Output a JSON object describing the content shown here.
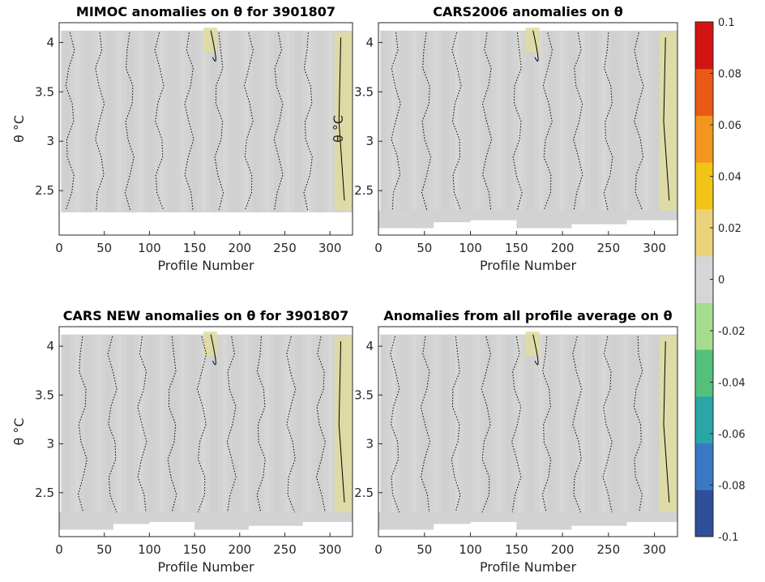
{
  "figure": {
    "colorbar": {
      "ticks": [
        "0.1",
        "0.08",
        "0.06",
        "0.04",
        "0.02",
        "0",
        "-0.02",
        "-0.04",
        "-0.06",
        "-0.08",
        "-0.1"
      ],
      "colors": [
        "#2f4f9a",
        "#3a78c4",
        "#2aa6a6",
        "#54c07c",
        "#a6dc8e",
        "#d6d6d6",
        "#ead37a",
        "#f2c418",
        "#f2961e",
        "#ea5a14",
        "#d21412"
      ]
    }
  },
  "chart_data": [
    {
      "type": "heatmap",
      "title": "MIMOC anomalies on θ  for 3901807",
      "xlabel": "Profile Number",
      "ylabel": "θ °C",
      "xlim": [
        0,
        325
      ],
      "ylim": [
        2.05,
        4.2
      ],
      "xticks": [
        "0",
        "50",
        "100",
        "150",
        "200",
        "250",
        "300"
      ],
      "yticks": [
        "2.5",
        "3",
        "3.5",
        "4"
      ],
      "clim": [
        -0.1,
        0.1
      ]
    },
    {
      "type": "heatmap",
      "title": "CARS2006 anomalies on θ",
      "xlabel": "Profile Number",
      "ylabel": "θ °C",
      "xlim": [
        0,
        325
      ],
      "ylim": [
        2.05,
        4.2
      ],
      "xticks": [
        "0",
        "50",
        "100",
        "150",
        "200",
        "250",
        "300"
      ],
      "yticks": [
        "2.5",
        "3",
        "3.5",
        "4"
      ],
      "clim": [
        -0.1,
        0.1
      ]
    },
    {
      "type": "heatmap",
      "title": "CARS NEW anomalies on θ for 3901807",
      "xlabel": "Profile Number",
      "ylabel": "θ °C",
      "xlim": [
        0,
        325
      ],
      "ylim": [
        2.05,
        4.2
      ],
      "xticks": [
        "0",
        "50",
        "100",
        "150",
        "200",
        "250",
        "300"
      ],
      "yticks": [
        "2.5",
        "3",
        "3.5",
        "4"
      ],
      "clim": [
        -0.1,
        0.1
      ]
    },
    {
      "type": "heatmap",
      "title": "Anomalies from all profile average on θ",
      "xlabel": "Profile Number",
      "ylabel": "",
      "xlim": [
        0,
        325
      ],
      "ylim": [
        2.05,
        4.2
      ],
      "xticks": [
        "0",
        "50",
        "100",
        "150",
        "200",
        "250",
        "300"
      ],
      "yticks": [
        "2.5",
        "3",
        "3.5",
        "4"
      ],
      "clim": [
        -0.1,
        0.1
      ]
    }
  ]
}
